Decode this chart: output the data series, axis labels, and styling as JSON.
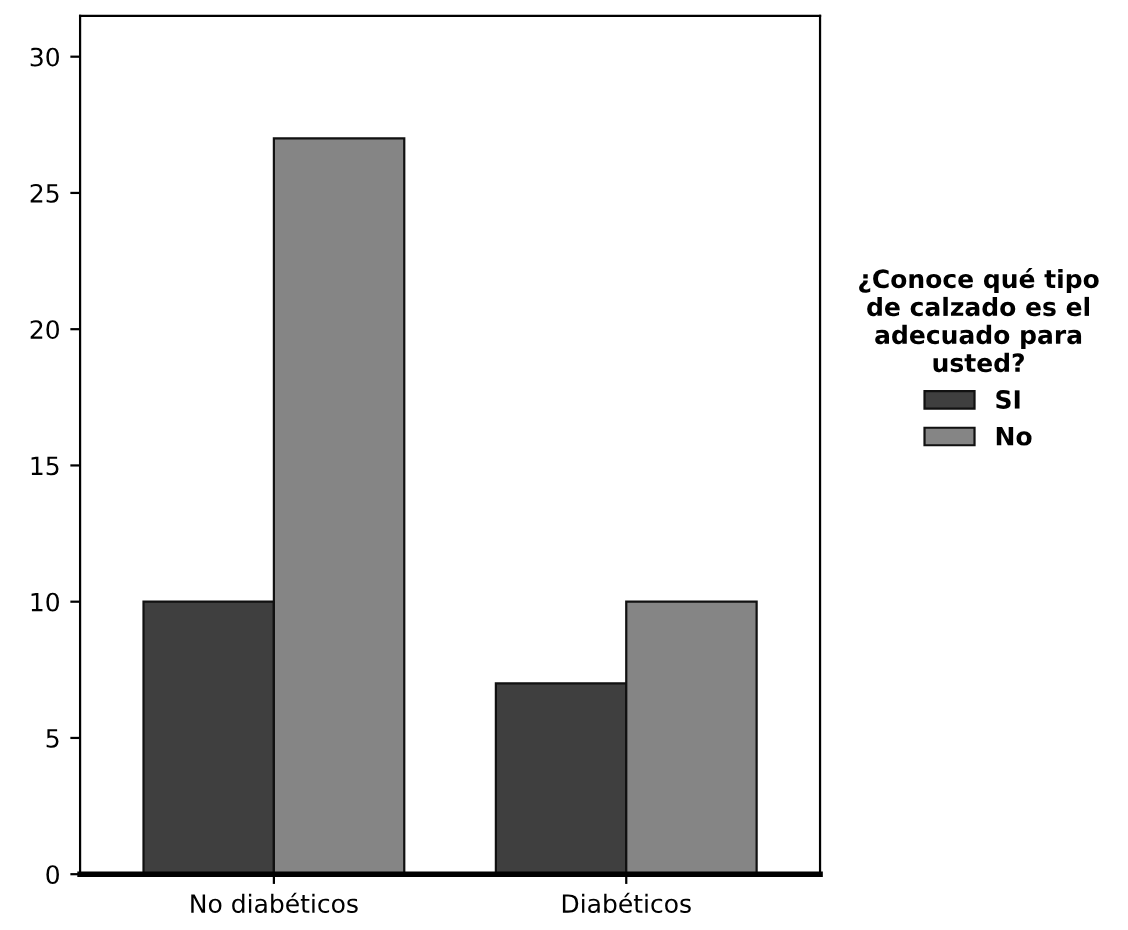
{
  "chart_data": {
    "type": "bar",
    "categories": [
      "No diabéticos",
      "Diabéticos"
    ],
    "series": [
      {
        "name": "SI",
        "color": "#3f3f3f",
        "values": [
          10,
          7
        ]
      },
      {
        "name": "No",
        "color": "#858585",
        "values": [
          27,
          10
        ]
      }
    ],
    "legend_title": "¿Conoce qué tipo de calzado es el adecuado para usted?",
    "legend": "right",
    "ylim": [
      0,
      31.5
    ],
    "yticks": [
      0,
      5,
      10,
      15,
      20,
      25,
      30
    ],
    "grid": false
  }
}
